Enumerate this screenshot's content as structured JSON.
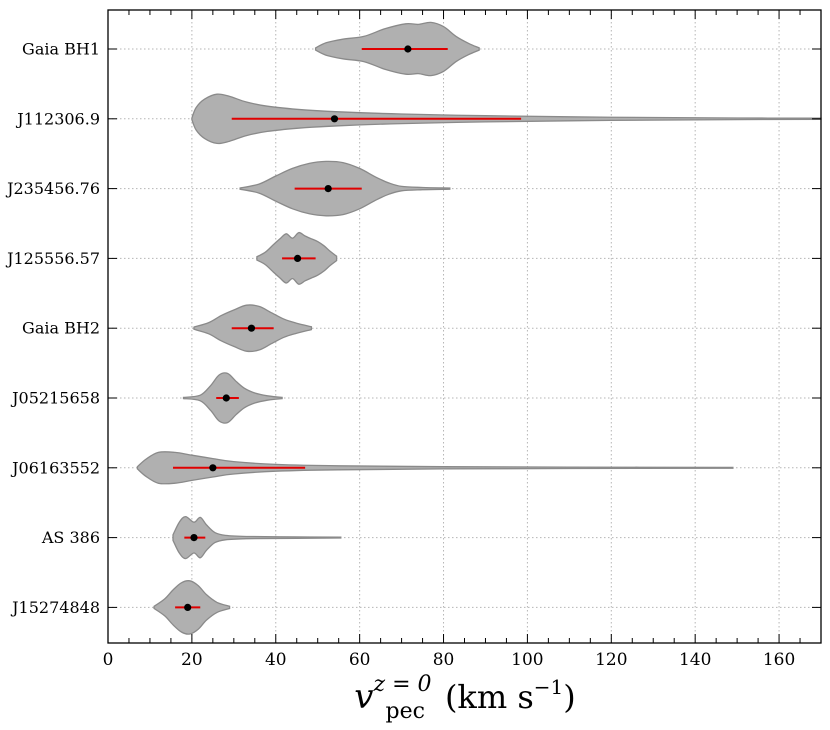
{
  "chart_data": {
    "type": "violin",
    "xlabel": {
      "symbol": "v",
      "subscript": "pec",
      "superscript": "z = 0",
      "units": "(km s",
      "units_exp": "−1",
      "units_close": ")"
    },
    "xlim": [
      0,
      170
    ],
    "xticks": [
      0,
      20,
      40,
      60,
      80,
      100,
      120,
      140,
      160
    ],
    "grid": true,
    "colors": {
      "violin_fill": "#b0b0b0",
      "violin_edge": "#8a8a8a",
      "errorbar": "#e00000",
      "median": "#000000",
      "grid": "#b5b5b5"
    },
    "series": [
      {
        "name": "Gaia BH1",
        "median": 71.5,
        "ci": [
          60.5,
          81.0
        ],
        "shape": [
          [
            49.5,
            0.04
          ],
          [
            52,
            0.22
          ],
          [
            56,
            0.35
          ],
          [
            61,
            0.45
          ],
          [
            66,
            0.72
          ],
          [
            71,
            0.9
          ],
          [
            74,
            0.88
          ],
          [
            77,
            0.95
          ],
          [
            80,
            0.8
          ],
          [
            83,
            0.45
          ],
          [
            86,
            0.2
          ],
          [
            88.5,
            0.04
          ]
        ]
      },
      {
        "name": "J112306.9",
        "median": 54.0,
        "ci": [
          29.5,
          98.5
        ],
        "shape": [
          [
            20,
            0.03
          ],
          [
            21,
            0.4
          ],
          [
            23,
            0.7
          ],
          [
            26,
            0.88
          ],
          [
            29,
            0.8
          ],
          [
            33,
            0.6
          ],
          [
            38,
            0.45
          ],
          [
            45,
            0.34
          ],
          [
            55,
            0.25
          ],
          [
            70,
            0.17
          ],
          [
            90,
            0.11
          ],
          [
            110,
            0.07
          ],
          [
            130,
            0.045
          ],
          [
            150,
            0.03
          ],
          [
            170,
            0.02
          ]
        ]
      },
      {
        "name": "J235456.76",
        "median": 52.5,
        "ci": [
          44.5,
          60.5
        ],
        "shape": [
          [
            31.5,
            0.02
          ],
          [
            36,
            0.16
          ],
          [
            40,
            0.45
          ],
          [
            44,
            0.72
          ],
          [
            48,
            0.9
          ],
          [
            52,
            0.97
          ],
          [
            56,
            0.93
          ],
          [
            60,
            0.72
          ],
          [
            64,
            0.4
          ],
          [
            67,
            0.2
          ],
          [
            70,
            0.08
          ],
          [
            75,
            0.04
          ],
          [
            81.5,
            0.02
          ]
        ]
      },
      {
        "name": "J125556.57",
        "median": 45.2,
        "ci": [
          41.5,
          49.5
        ],
        "shape": [
          [
            35.5,
            0.06
          ],
          [
            37.5,
            0.22
          ],
          [
            39.5,
            0.5
          ],
          [
            41,
            0.7
          ],
          [
            42.5,
            0.88
          ],
          [
            44,
            0.72
          ],
          [
            45.5,
            0.92
          ],
          [
            47,
            0.8
          ],
          [
            48.5,
            0.7
          ],
          [
            50,
            0.6
          ],
          [
            51.5,
            0.45
          ],
          [
            53,
            0.25
          ],
          [
            54.5,
            0.08
          ]
        ]
      },
      {
        "name": "Gaia BH2",
        "median": 34.2,
        "ci": [
          29.5,
          39.5
        ],
        "shape": [
          [
            20.5,
            0.04
          ],
          [
            24,
            0.2
          ],
          [
            27,
            0.45
          ],
          [
            30,
            0.65
          ],
          [
            33,
            0.82
          ],
          [
            36,
            0.78
          ],
          [
            39,
            0.55
          ],
          [
            42,
            0.32
          ],
          [
            45,
            0.18
          ],
          [
            48.5,
            0.05
          ]
        ]
      },
      {
        "name": "J05215658",
        "median": 28.2,
        "ci": [
          25.8,
          31.2
        ],
        "shape": [
          [
            18,
            0.02
          ],
          [
            22,
            0.1
          ],
          [
            24.5,
            0.45
          ],
          [
            26.5,
            0.82
          ],
          [
            28.5,
            0.88
          ],
          [
            30.5,
            0.6
          ],
          [
            32.5,
            0.35
          ],
          [
            35,
            0.18
          ],
          [
            38,
            0.08
          ],
          [
            41.5,
            0.02
          ]
        ]
      },
      {
        "name": "J06163552",
        "median": 25.0,
        "ci": [
          15.5,
          47.0
        ],
        "shape": [
          [
            7,
            0.04
          ],
          [
            9,
            0.3
          ],
          [
            12,
            0.55
          ],
          [
            16,
            0.55
          ],
          [
            20,
            0.45
          ],
          [
            25,
            0.33
          ],
          [
            30,
            0.22
          ],
          [
            40,
            0.12
          ],
          [
            55,
            0.07
          ],
          [
            80,
            0.04
          ],
          [
            110,
            0.025
          ],
          [
            149,
            0.015
          ]
        ]
      },
      {
        "name": "AS 386",
        "median": 20.5,
        "ci": [
          18.2,
          23.2
        ],
        "shape": [
          [
            15.5,
            0.1
          ],
          [
            17,
            0.55
          ],
          [
            18.5,
            0.75
          ],
          [
            20.5,
            0.55
          ],
          [
            22,
            0.72
          ],
          [
            23.5,
            0.45
          ],
          [
            25.5,
            0.18
          ],
          [
            28,
            0.08
          ],
          [
            33,
            0.04
          ],
          [
            45,
            0.025
          ],
          [
            55.5,
            0.015
          ]
        ]
      },
      {
        "name": "J15274848",
        "median": 19.0,
        "ci": [
          16.0,
          22.0
        ],
        "shape": [
          [
            11,
            0.04
          ],
          [
            13.5,
            0.3
          ],
          [
            15.5,
            0.62
          ],
          [
            17.5,
            0.88
          ],
          [
            19.5,
            0.95
          ],
          [
            21.5,
            0.78
          ],
          [
            23.5,
            0.45
          ],
          [
            26,
            0.18
          ],
          [
            29,
            0.04
          ]
        ]
      }
    ]
  }
}
